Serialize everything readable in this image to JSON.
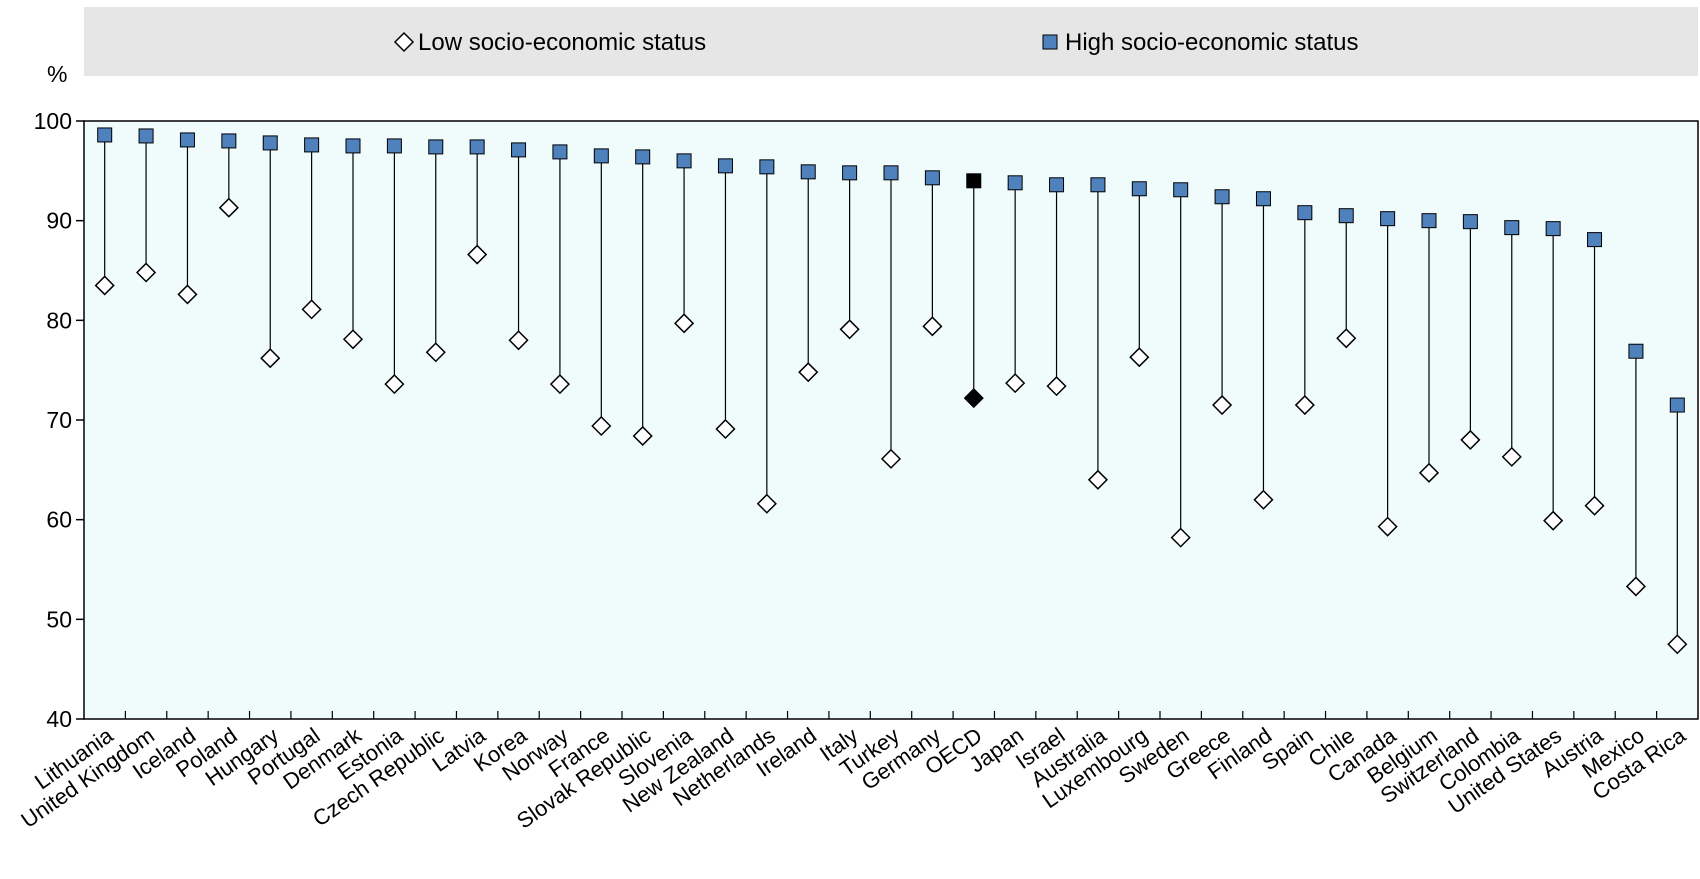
{
  "chart_data": {
    "type": "dot-range",
    "ylabel": "%",
    "ylim": [
      40,
      100
    ],
    "yticks": [
      40,
      50,
      60,
      70,
      80,
      90,
      100
    ],
    "grid": false,
    "legend_position": "top",
    "highlight_category": "OECD",
    "colors": {
      "high": "#4f81bd",
      "low": "#ffffff",
      "highlight": "#000000",
      "plot_background": "#f0fbfc",
      "legend_background": "#e6e6e6"
    },
    "categories": [
      "Lithuania",
      "United Kingdom",
      "Iceland",
      "Poland",
      "Hungary",
      "Portugal",
      "Denmark",
      "Estonia",
      "Czech Republic",
      "Latvia",
      "Korea",
      "Norway",
      "France",
      "Slovak Republic",
      "Slovenia",
      "New Zealand",
      "Netherlands",
      "Ireland",
      "Italy",
      "Turkey",
      "Germany",
      "OECD",
      "Japan",
      "Israel",
      "Australia",
      "Luxembourg",
      "Sweden",
      "Greece",
      "Finland",
      "Spain",
      "Chile",
      "Canada",
      "Belgium",
      "Switzerland",
      "Colombia",
      "United States",
      "Austria",
      "Mexico",
      "Costa Rica"
    ],
    "series": [
      {
        "name": "Low socio-economic status",
        "marker": "diamond",
        "values": [
          83.5,
          84.8,
          82.6,
          91.3,
          76.2,
          81.1,
          78.1,
          73.6,
          76.8,
          86.6,
          78.0,
          73.6,
          69.4,
          68.4,
          79.7,
          69.1,
          61.6,
          74.8,
          79.1,
          66.1,
          79.4,
          72.2,
          73.7,
          73.4,
          64.0,
          76.3,
          58.2,
          71.5,
          62.0,
          71.5,
          78.2,
          59.3,
          64.7,
          68.0,
          66.3,
          59.9,
          61.4,
          53.3,
          47.5
        ]
      },
      {
        "name": "High socio-economic status",
        "marker": "square",
        "values": [
          98.6,
          98.5,
          98.1,
          98.0,
          97.8,
          97.6,
          97.5,
          97.5,
          97.4,
          97.4,
          97.1,
          96.9,
          96.5,
          96.4,
          96.0,
          95.5,
          95.4,
          94.9,
          94.8,
          94.8,
          94.3,
          94.0,
          93.8,
          93.6,
          93.6,
          93.2,
          93.1,
          92.4,
          92.2,
          90.8,
          90.5,
          90.2,
          90.0,
          89.9,
          89.3,
          89.2,
          88.1,
          76.9,
          71.5
        ]
      }
    ]
  }
}
